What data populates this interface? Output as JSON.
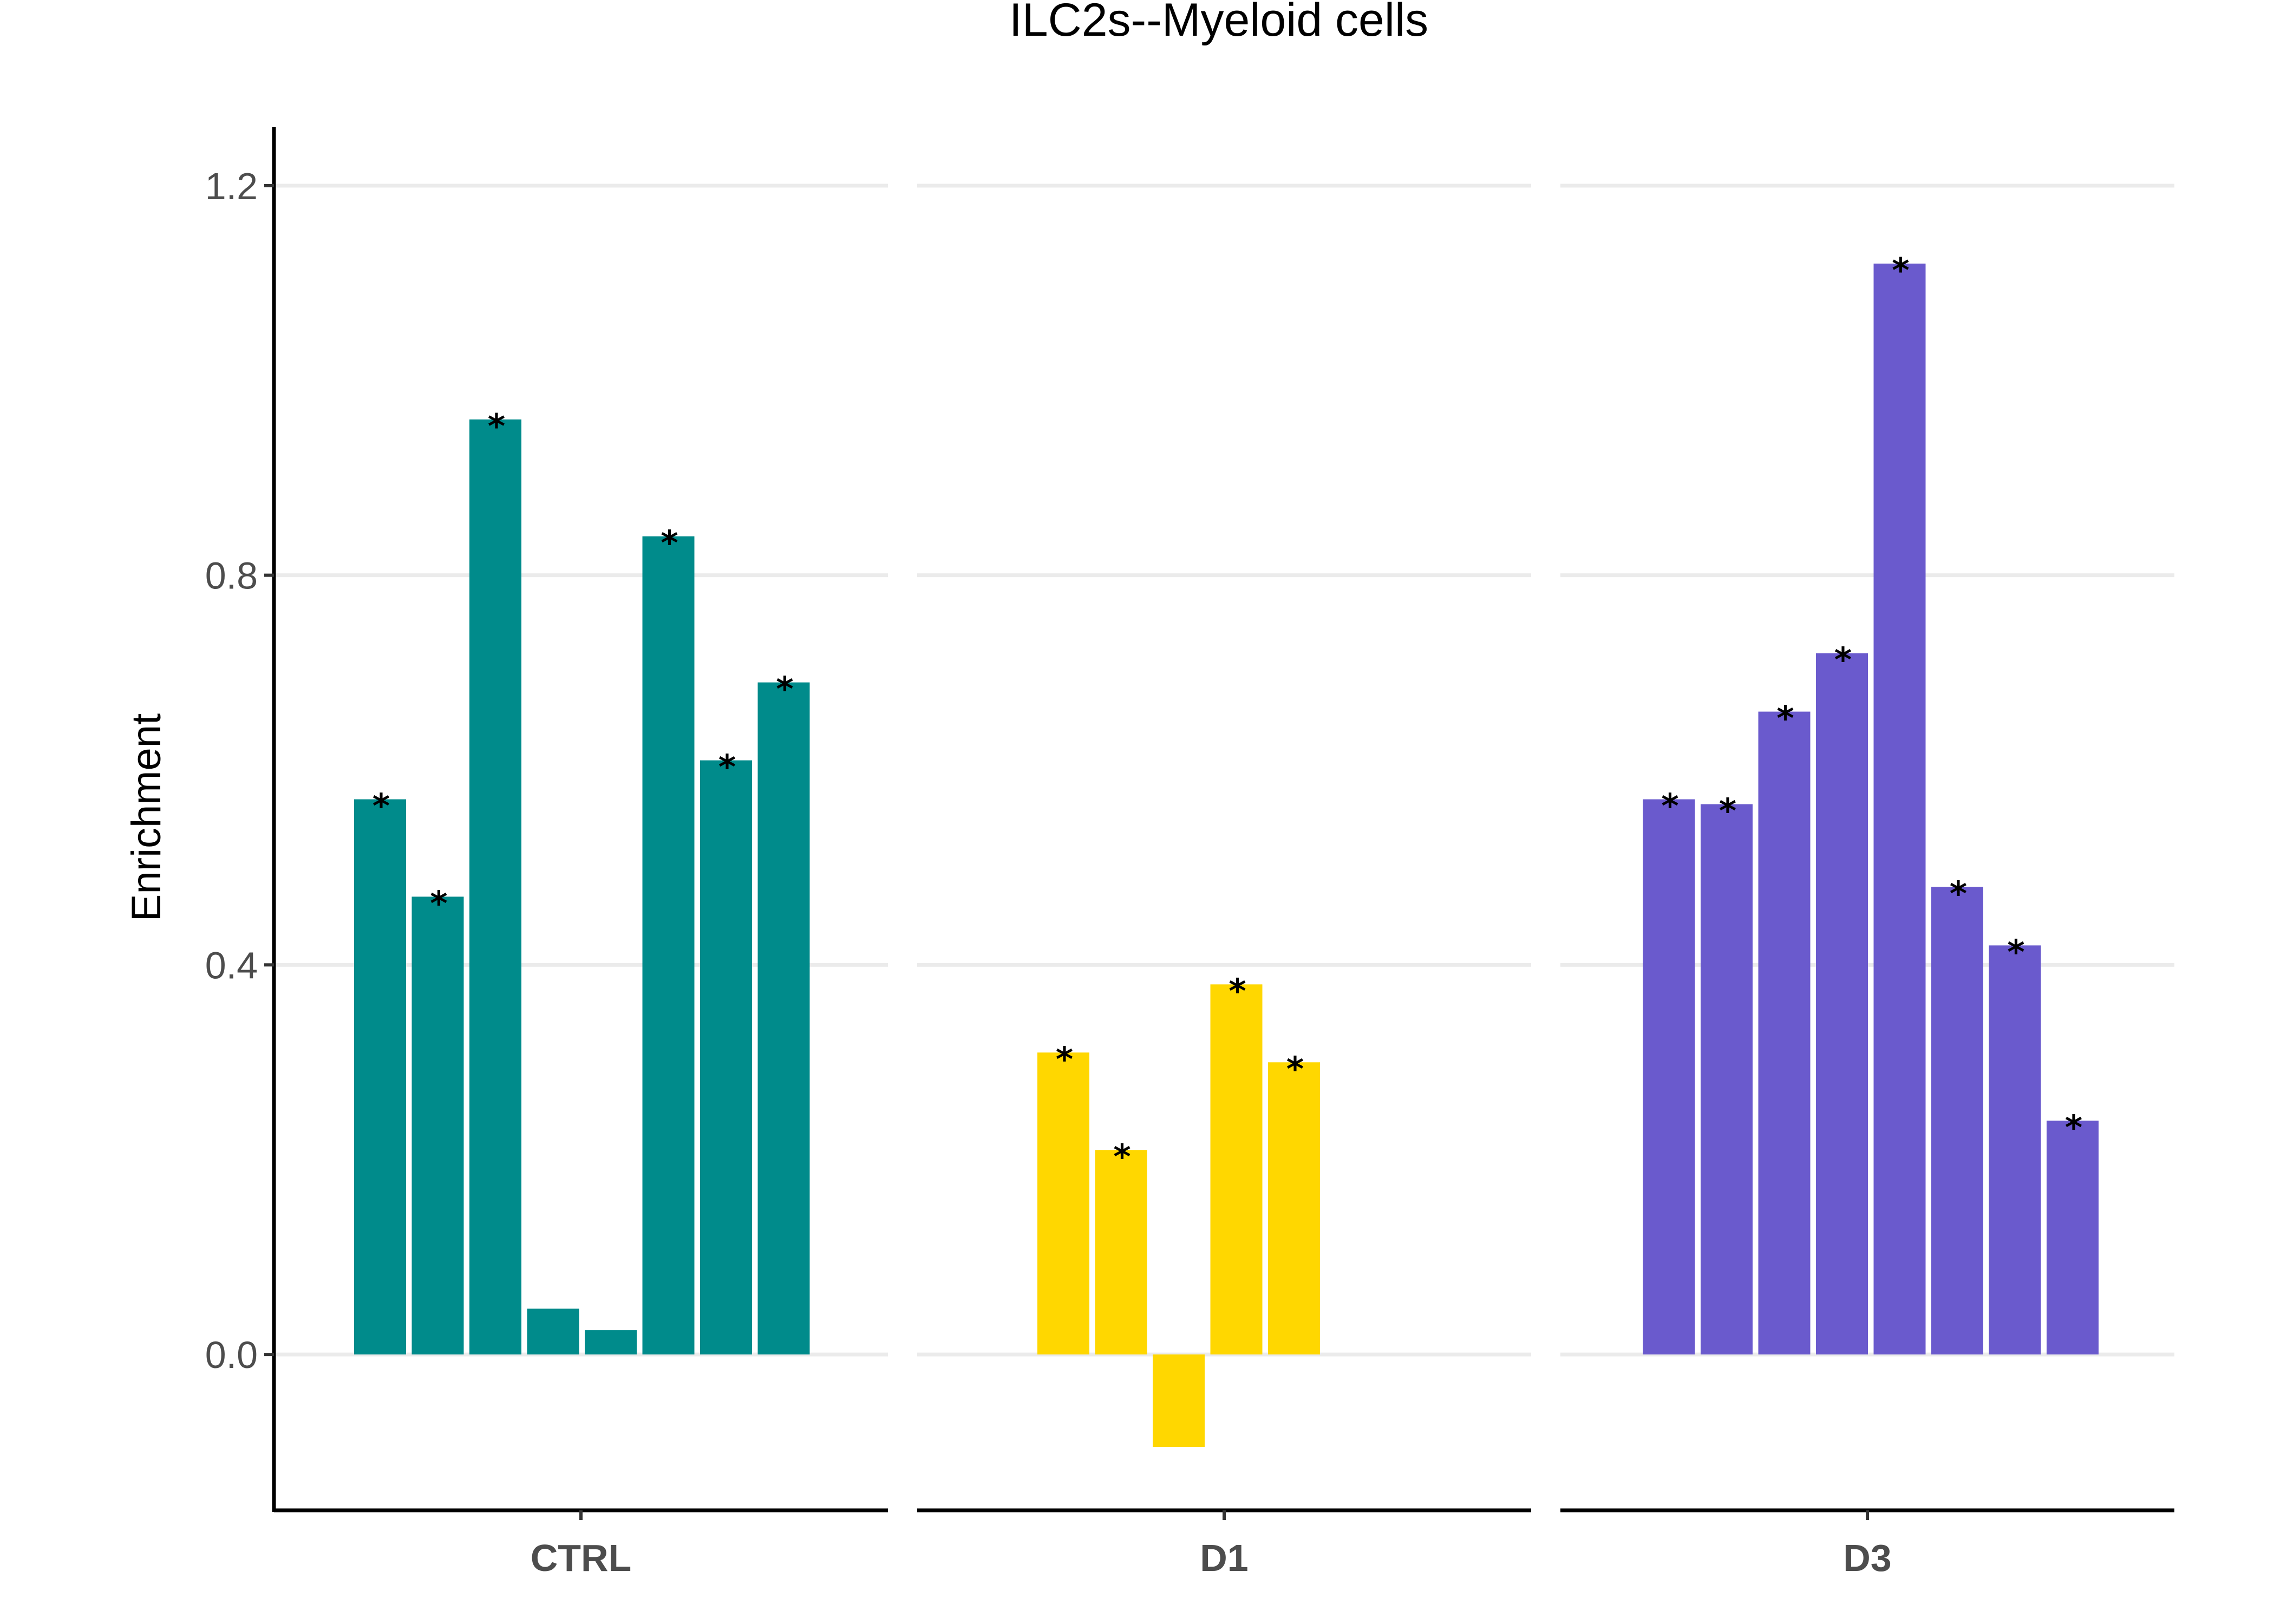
{
  "chart_data": {
    "type": "bar",
    "title": "ILC2s--Myeloid cells",
    "xlabel": "",
    "ylabel": "Enrichment",
    "ylim": [
      -0.16,
      1.26
    ],
    "yticks": [
      0.0,
      0.4,
      0.8,
      1.2
    ],
    "ytick_labels": [
      "0.0",
      "0.4",
      "0.8",
      "1.2"
    ],
    "grid": "horizontal major gridlines",
    "legend": "none",
    "significance_marker": "*",
    "facets": [
      {
        "label": "CTRL",
        "color": "#008B8B",
        "values": [
          0.57,
          0.47,
          0.96,
          0.047,
          0.025,
          0.84,
          0.61,
          0.69
        ],
        "significant": [
          true,
          true,
          true,
          false,
          false,
          true,
          true,
          true
        ]
      },
      {
        "label": "D1",
        "color": "#FFD700",
        "values": [
          null,
          null,
          0.31,
          0.21,
          -0.095,
          0.38,
          0.3
        ],
        "significant": [
          false,
          false,
          true,
          true,
          false,
          true,
          true
        ]
      },
      {
        "label": "D3",
        "color": "#6A5ACD",
        "values": [
          null,
          0.57,
          0.565,
          0.66,
          0.72,
          1.12,
          0.48,
          0.42,
          0.24
        ],
        "significant": [
          false,
          true,
          true,
          true,
          true,
          true,
          true,
          true,
          true
        ]
      }
    ]
  }
}
